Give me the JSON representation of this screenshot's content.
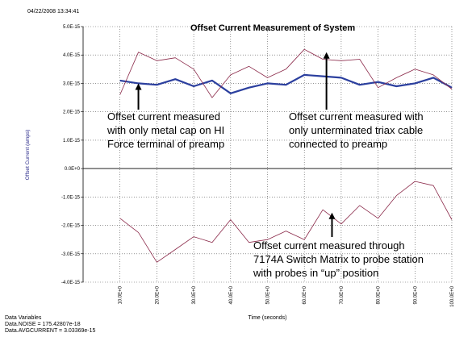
{
  "timestamp": "04/22/2008 13:34:41",
  "chart_data": {
    "type": "line",
    "title": "Offset Current Measurement of System",
    "xlabel": "Time (seconds)",
    "ylabel": "Offset Current (amps)",
    "xlim": [
      0,
      100
    ],
    "ylim": [
      -4e-15,
      5e-15
    ],
    "x_ticks": [
      10,
      20,
      30,
      40,
      50,
      60,
      70,
      80,
      90,
      100
    ],
    "x_tick_labels": [
      "10.0E+0",
      "20.0E+0",
      "30.0E+0",
      "40.0E+0",
      "50.0E+0",
      "60.0E+0",
      "70.0E+0",
      "80.0E+0",
      "90.0E+0",
      "100.0E+0"
    ],
    "y_ticks": [
      5e-15,
      4e-15,
      3e-15,
      2e-15,
      1e-15,
      0,
      -1e-15,
      -2e-15,
      -3e-15,
      -4e-15
    ],
    "y_tick_labels": [
      "5.0E-15",
      "4.0E-15",
      "3.0E-15",
      "2.0E-15",
      "1.0E-15",
      "0.0E+0",
      "-1.0E-15",
      "-2.0E-15",
      "-3.0E-15",
      "-4.0E-15"
    ],
    "grid": true,
    "series": [
      {
        "color": "#2b3f9e",
        "x": [
          10,
          15,
          20,
          25,
          30,
          35,
          40,
          45,
          50,
          55,
          60,
          65,
          70,
          75,
          80,
          85,
          90,
          95,
          100
        ],
        "values": [
          3.1e-15,
          3e-15,
          2.95e-15,
          3.15e-15,
          2.9e-15,
          3.1e-15,
          2.65e-15,
          2.85e-15,
          3e-15,
          2.95e-15,
          3.3e-15,
          3.25e-15,
          3.2e-15,
          2.95e-15,
          3.05e-15,
          2.9e-15,
          3e-15,
          3.2e-15,
          2.85e-15
        ]
      },
      {
        "color": "#8b2a4a",
        "x": [
          10,
          15,
          20,
          25,
          30,
          35,
          40,
          45,
          50,
          55,
          60,
          65,
          70,
          75,
          80,
          85,
          90,
          95,
          100
        ],
        "values": [
          2.6e-15,
          4.1e-15,
          3.8e-15,
          3.9e-15,
          3.5e-15,
          2.5e-15,
          3.3e-15,
          3.6e-15,
          3.2e-15,
          3.5e-15,
          4.2e-15,
          3.85e-15,
          3.8e-15,
          3.85e-15,
          2.85e-15,
          3.2e-15,
          3.5e-15,
          3.3e-15,
          2.8e-15
        ]
      },
      {
        "color": "#8b2a4a",
        "x": [
          10,
          15,
          20,
          25,
          30,
          35,
          40,
          45,
          50,
          55,
          60,
          65,
          70,
          75,
          80,
          85,
          90,
          95,
          100
        ],
        "values": [
          -1.75e-15,
          -2.25e-15,
          -3.3e-15,
          -2.85e-15,
          -2.4e-15,
          -2.6e-15,
          -1.8e-15,
          -2.6e-15,
          -2.5e-15,
          -2.2e-15,
          -2.5e-15,
          -1.45e-15,
          -1.95e-15,
          -1.3e-15,
          -1.75e-15,
          -9.5e-16,
          -4.5e-16,
          -6e-16,
          -1.8e-15
        ]
      }
    ],
    "annotations": [
      {
        "lines": [
          "Offset current measured",
          "with only metal cap on HI",
          "Force terminal of preamp"
        ],
        "arrow_x": 15,
        "arrow_y": 3e-15
      },
      {
        "lines": [
          "Offset current measured with",
          "only unterminated triax cable",
          "connected to preamp"
        ],
        "arrow_x": 66,
        "arrow_y": 4.1e-15
      },
      {
        "lines": [
          "Offset current measured through",
          "7174A Switch Matrix to probe station",
          "with probes in “up” position"
        ],
        "arrow_x": 67.5,
        "arrow_y": -1.55e-15
      }
    ]
  },
  "footer": {
    "heading": "Data Variables",
    "noise": "Data.NOISE = 175.42807e-18",
    "avg": "Data.AVGCURRENT = 3.03369e-15"
  }
}
